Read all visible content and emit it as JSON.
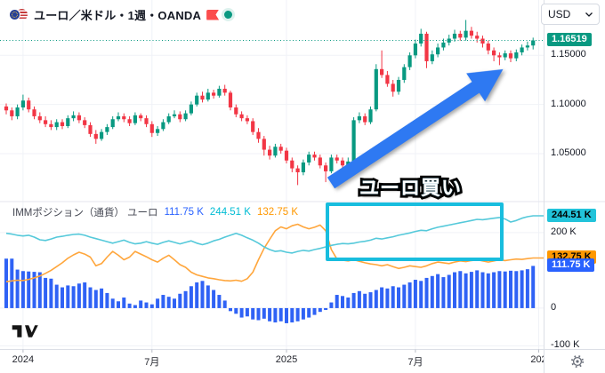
{
  "header": {
    "symbol_title": "ユーロ／米ドル・1週・OANDA",
    "market_status": "open",
    "currency_selector": {
      "value": "USD"
    }
  },
  "indicator_legend": {
    "title": "IMMポジション（通貨）  ユーロ",
    "values": [
      {
        "label": "111.75 K",
        "color": "#2962ff"
      },
      {
        "label": "244.51 K",
        "color": "#00bcd4"
      },
      {
        "label": "132.75 K",
        "color": "#ff9800"
      }
    ]
  },
  "annotations": {
    "label": "ユーロ買い",
    "arrow_color": "#2e79f2",
    "highlight_box_color": "#18bdde"
  },
  "axes": {
    "price": {
      "ticks": [
        {
          "label": "1.15000",
          "value": 1.15
        },
        {
          "label": "1.10000",
          "value": 1.1
        },
        {
          "label": "1.05000",
          "value": 1.05
        }
      ],
      "current": {
        "label": "1.16519",
        "value": 1.16519,
        "bg": "#089981",
        "fg": "#ffffff"
      }
    },
    "indicator": {
      "ticks": [
        {
          "label": "200 K",
          "value": 200
        },
        {
          "label": "0",
          "value": 0
        },
        {
          "label": "-100 K",
          "value": -100
        }
      ],
      "badges": [
        {
          "label": "244.51 K",
          "value": 244.51,
          "bg": "#22c3da",
          "fg": "#000000"
        },
        {
          "label": "132.75 K",
          "value": 132.75,
          "bg": "#ff9800",
          "fg": "#000000"
        },
        {
          "label": "111.75 K",
          "value": 111.75,
          "bg": "#2962ff",
          "fg": "#ffffff"
        }
      ]
    },
    "time": {
      "ticks": [
        {
          "label": "2024",
          "index": 3
        },
        {
          "label": "7月",
          "index": 26
        },
        {
          "label": "2025",
          "index": 50
        },
        {
          "label": "7月",
          "index": 73
        },
        {
          "label": "202",
          "index": 95
        }
      ]
    }
  },
  "chart_data": {
    "type": "candlestick",
    "title": "ユーロ／米ドル・1週・OANDA",
    "price_pane": {
      "up_color": "#089981",
      "down_color": "#f23645",
      "current_price": 1.16519,
      "ylim": [
        1.003,
        1.181
      ],
      "candles_ohlc": [
        [
          1.098,
          1.101,
          1.09,
          1.094
        ],
        [
          1.094,
          1.097,
          1.084,
          1.088
        ],
        [
          1.088,
          1.1,
          1.085,
          1.097
        ],
        [
          1.097,
          1.11,
          1.094,
          1.104
        ],
        [
          1.104,
          1.107,
          1.092,
          1.095
        ],
        [
          1.095,
          1.098,
          1.085,
          1.088
        ],
        [
          1.088,
          1.092,
          1.081,
          1.084
        ],
        [
          1.084,
          1.088,
          1.077,
          1.08
        ],
        [
          1.08,
          1.084,
          1.074,
          1.077
        ],
        [
          1.077,
          1.085,
          1.074,
          1.082
        ],
        [
          1.082,
          1.085,
          1.075,
          1.078
        ],
        [
          1.078,
          1.089,
          1.076,
          1.086
        ],
        [
          1.086,
          1.093,
          1.083,
          1.089
        ],
        [
          1.089,
          1.092,
          1.081,
          1.084
        ],
        [
          1.084,
          1.087,
          1.076,
          1.079
        ],
        [
          1.079,
          1.082,
          1.067,
          1.07
        ],
        [
          1.07,
          1.074,
          1.06,
          1.065
        ],
        [
          1.065,
          1.075,
          1.063,
          1.072
        ],
        [
          1.072,
          1.08,
          1.069,
          1.077
        ],
        [
          1.077,
          1.088,
          1.075,
          1.085
        ],
        [
          1.085,
          1.092,
          1.083,
          1.088
        ],
        [
          1.088,
          1.091,
          1.082,
          1.085
        ],
        [
          1.085,
          1.088,
          1.078,
          1.081
        ],
        [
          1.081,
          1.092,
          1.079,
          1.089
        ],
        [
          1.089,
          1.091,
          1.083,
          1.086
        ],
        [
          1.086,
          1.089,
          1.077,
          1.08
        ],
        [
          1.08,
          1.083,
          1.067,
          1.071
        ],
        [
          1.071,
          1.078,
          1.068,
          1.075
        ],
        [
          1.075,
          1.085,
          1.073,
          1.082
        ],
        [
          1.082,
          1.091,
          1.08,
          1.088
        ],
        [
          1.088,
          1.094,
          1.086,
          1.09
        ],
        [
          1.09,
          1.093,
          1.082,
          1.085
        ],
        [
          1.085,
          1.094,
          1.083,
          1.091
        ],
        [
          1.091,
          1.103,
          1.089,
          1.1
        ],
        [
          1.1,
          1.112,
          1.098,
          1.109
        ],
        [
          1.109,
          1.113,
          1.102,
          1.105
        ],
        [
          1.105,
          1.116,
          1.103,
          1.112
        ],
        [
          1.112,
          1.115,
          1.106,
          1.109
        ],
        [
          1.109,
          1.119,
          1.107,
          1.116
        ],
        [
          1.116,
          1.12,
          1.109,
          1.112
        ],
        [
          1.112,
          1.114,
          1.094,
          1.097
        ],
        [
          1.097,
          1.1,
          1.087,
          1.09
        ],
        [
          1.09,
          1.093,
          1.083,
          1.086
        ],
        [
          1.086,
          1.089,
          1.08,
          1.083
        ],
        [
          1.083,
          1.086,
          1.069,
          1.072
        ],
        [
          1.072,
          1.076,
          1.061,
          1.065
        ],
        [
          1.065,
          1.068,
          1.048,
          1.054
        ],
        [
          1.054,
          1.058,
          1.044,
          1.048
        ],
        [
          1.048,
          1.06,
          1.046,
          1.057
        ],
        [
          1.057,
          1.06,
          1.05,
          1.053
        ],
        [
          1.053,
          1.056,
          1.04,
          1.043
        ],
        [
          1.043,
          1.046,
          1.031,
          1.035
        ],
        [
          1.035,
          1.038,
          1.018,
          1.031
        ],
        [
          1.031,
          1.044,
          1.028,
          1.041
        ],
        [
          1.041,
          1.052,
          1.038,
          1.049
        ],
        [
          1.049,
          1.052,
          1.043,
          1.046
        ],
        [
          1.046,
          1.049,
          1.035,
          1.038
        ],
        [
          1.038,
          1.041,
          1.021,
          1.032
        ],
        [
          1.032,
          1.049,
          1.03,
          1.046
        ],
        [
          1.046,
          1.049,
          1.04,
          1.043
        ],
        [
          1.043,
          1.046,
          1.035,
          1.038
        ],
        [
          1.038,
          1.046,
          1.035,
          1.042
        ],
        [
          1.042,
          1.087,
          1.04,
          1.084
        ],
        [
          1.084,
          1.092,
          1.081,
          1.088
        ],
        [
          1.088,
          1.091,
          1.079,
          1.082
        ],
        [
          1.082,
          1.098,
          1.08,
          1.095
        ],
        [
          1.095,
          1.141,
          1.093,
          1.136
        ],
        [
          1.136,
          1.155,
          1.127,
          1.13
        ],
        [
          1.13,
          1.134,
          1.118,
          1.121
        ],
        [
          1.121,
          1.125,
          1.108,
          1.113
        ],
        [
          1.113,
          1.128,
          1.11,
          1.125
        ],
        [
          1.125,
          1.141,
          1.122,
          1.138
        ],
        [
          1.138,
          1.153,
          1.135,
          1.15
        ],
        [
          1.15,
          1.166,
          1.147,
          1.162
        ],
        [
          1.162,
          1.177,
          1.159,
          1.172
        ],
        [
          1.172,
          1.174,
          1.137,
          1.144
        ],
        [
          1.144,
          1.155,
          1.141,
          1.151
        ],
        [
          1.151,
          1.162,
          1.148,
          1.158
        ],
        [
          1.158,
          1.167,
          1.155,
          1.163
        ],
        [
          1.163,
          1.171,
          1.16,
          1.167
        ],
        [
          1.167,
          1.176,
          1.164,
          1.172
        ],
        [
          1.172,
          1.175,
          1.165,
          1.168
        ],
        [
          1.168,
          1.186,
          1.165,
          1.175
        ],
        [
          1.175,
          1.179,
          1.167,
          1.17
        ],
        [
          1.17,
          1.174,
          1.163,
          1.167
        ],
        [
          1.167,
          1.17,
          1.158,
          1.162
        ],
        [
          1.162,
          1.165,
          1.151,
          1.155
        ],
        [
          1.155,
          1.158,
          1.144,
          1.15
        ],
        [
          1.15,
          1.153,
          1.14,
          1.148
        ],
        [
          1.148,
          1.155,
          1.145,
          1.152
        ],
        [
          1.152,
          1.155,
          1.143,
          1.147
        ],
        [
          1.147,
          1.156,
          1.144,
          1.153
        ],
        [
          1.153,
          1.161,
          1.15,
          1.158
        ],
        [
          1.158,
          1.164,
          1.155,
          1.16
        ],
        [
          1.16,
          1.168,
          1.156,
          1.16519
        ]
      ]
    },
    "indicator_pane": {
      "title": "IMMポジション（通貨）  ユーロ",
      "unit": "K contracts",
      "ylim": [
        -106,
        275
      ],
      "series": [
        {
          "name": "blue-histogram",
          "type": "histogram",
          "color": "#2f62f5",
          "last": 111.75,
          "values": [
            131,
            131,
            102,
            98,
            97,
            96,
            95,
            80,
            78,
            62,
            55,
            60,
            58,
            65,
            68,
            55,
            48,
            52,
            40,
            25,
            18,
            28,
            12,
            8,
            20,
            15,
            10,
            25,
            35,
            30,
            25,
            38,
            45,
            58,
            68,
            72,
            60,
            48,
            35,
            20,
            -8,
            -15,
            -25,
            -22,
            -30,
            -32,
            -28,
            -35,
            -38,
            -35,
            -40,
            -38,
            -35,
            -30,
            -25,
            -18,
            -10,
            -5,
            15,
            35,
            32,
            28,
            40,
            45,
            38,
            42,
            48,
            55,
            52,
            58,
            55,
            62,
            68,
            75,
            72,
            80,
            85,
            90,
            82,
            88,
            95,
            98,
            92,
            96,
            100,
            95,
            92,
            95,
            98,
            97,
            99,
            98,
            100,
            103,
            111.75
          ]
        },
        {
          "name": "cyan-line",
          "type": "line",
          "color": "#55c9da",
          "last": 244.51,
          "values": [
            198,
            196,
            193,
            191,
            193,
            188,
            181,
            179,
            183,
            188,
            190,
            193,
            195,
            196,
            193,
            188,
            184,
            180,
            176,
            172,
            176,
            180,
            174,
            170,
            172,
            176,
            172,
            169,
            174,
            178,
            174,
            170,
            174,
            178,
            172,
            168,
            172,
            178,
            182,
            188,
            193,
            198,
            193,
            186,
            180,
            172,
            162,
            155,
            150,
            152,
            148,
            146,
            150,
            153,
            151,
            155,
            158,
            162,
            166,
            169,
            171,
            170,
            172,
            175,
            177,
            180,
            185,
            183,
            186,
            189,
            193,
            196,
            199,
            203,
            206,
            205,
            210,
            214,
            217,
            220,
            223,
            226,
            229,
            232,
            235,
            234,
            236,
            238,
            240,
            236,
            228,
            232,
            238,
            242,
            244.51
          ]
        },
        {
          "name": "orange-line",
          "type": "line",
          "color": "#ffa63c",
          "last": 132.75,
          "values": [
            70,
            72,
            74,
            73,
            76,
            80,
            85,
            92,
            100,
            110,
            120,
            132,
            141,
            148,
            143,
            135,
            112,
            118,
            135,
            150,
            140,
            128,
            135,
            150,
            143,
            136,
            128,
            122,
            132,
            140,
            128,
            115,
            108,
            95,
            88,
            84,
            80,
            78,
            75,
            73,
            72,
            74,
            71,
            78,
            95,
            128,
            158,
            182,
            205,
            215,
            210,
            218,
            222,
            215,
            210,
            214,
            220,
            205,
            155,
            130,
            127,
            125,
            128,
            124,
            120,
            117,
            115,
            112,
            115,
            110,
            105,
            108,
            112,
            110,
            108,
            112,
            118,
            122,
            120,
            118,
            122,
            125,
            123,
            126,
            128,
            125,
            122,
            125,
            128,
            126,
            128,
            130,
            129,
            131,
            132.75
          ]
        }
      ]
    }
  }
}
